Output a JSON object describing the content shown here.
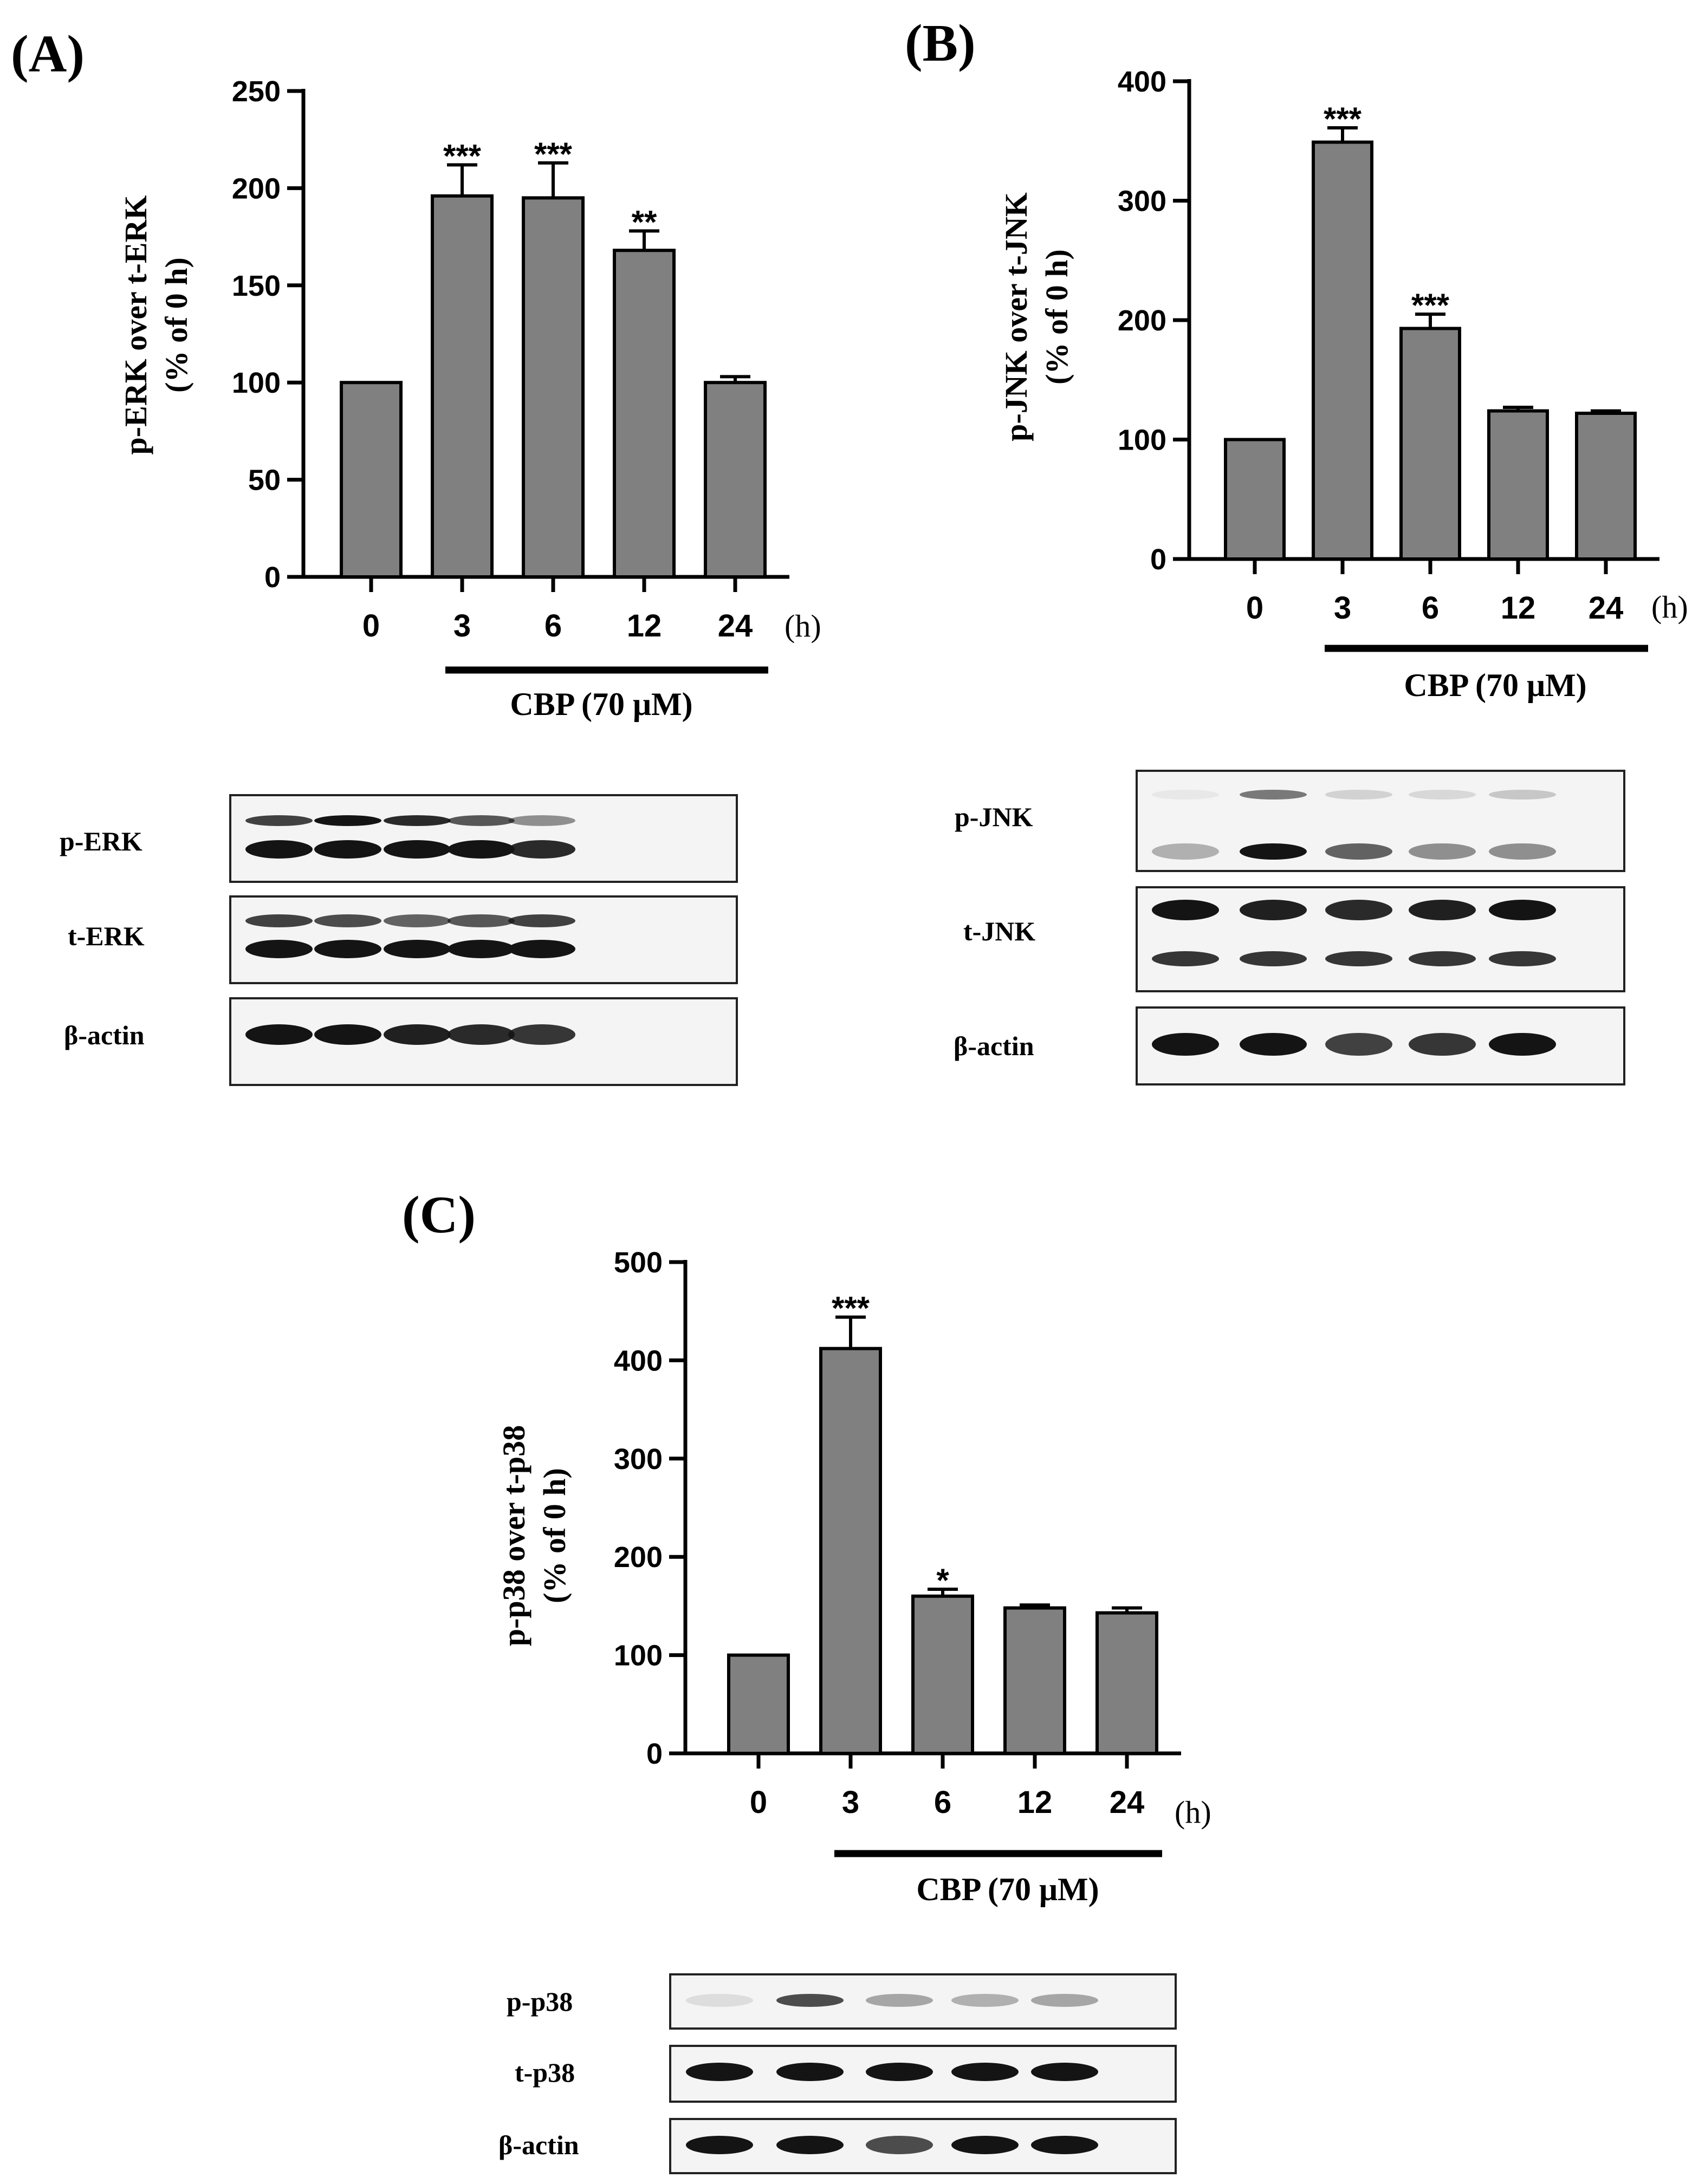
{
  "panels": {
    "A": {
      "label": "(A)",
      "treatment": "CBP (70 μM)",
      "unit": "(h)",
      "ylabel1": "p-ERK over t-ERK",
      "ylabel2": "(% of 0 h)",
      "blot_labels": [
        "p-ERK",
        "t-ERK",
        "β-actin"
      ]
    },
    "B": {
      "label": "(B)",
      "treatment": "CBP (70 μM)",
      "unit": "(h)",
      "ylabel1": "p-JNK over t-JNK",
      "ylabel2": "(% of 0 h)",
      "blot_labels": [
        "p-JNK",
        "t-JNK",
        "β-actin"
      ]
    },
    "C": {
      "label": "(C)",
      "treatment": "CBP (70 μM)",
      "unit": "(h)",
      "ylabel1": "p-p38 over t-p38",
      "ylabel2": "(% of 0 h)",
      "blot_labels": [
        "p-p38",
        "t-p38",
        "β-actin"
      ]
    }
  },
  "chart_data": [
    {
      "type": "bar",
      "panel": "A",
      "title": "",
      "categories": [
        "0",
        "3",
        "6",
        "12",
        "24"
      ],
      "values": [
        100,
        196,
        195,
        168,
        100
      ],
      "errors": [
        0,
        16,
        18,
        10,
        3
      ],
      "significance": [
        "",
        "***",
        "***",
        "**",
        ""
      ],
      "xlabel": "CBP (70 μM)",
      "ylabel": "p-ERK over t-ERK (% of 0 h)",
      "ylim": [
        0,
        250
      ],
      "yticks": [
        0,
        50,
        100,
        150,
        200,
        250
      ]
    },
    {
      "type": "bar",
      "panel": "B",
      "title": "",
      "categories": [
        "0",
        "3",
        "6",
        "12",
        "24"
      ],
      "values": [
        100,
        349,
        193,
        124,
        122
      ],
      "errors": [
        0,
        12,
        12,
        3,
        2
      ],
      "significance": [
        "",
        "***",
        "***",
        "",
        ""
      ],
      "xlabel": "CBP (70 μM)",
      "ylabel": "p-JNK over t-JNK (% of 0 h)",
      "ylim": [
        0,
        400
      ],
      "yticks": [
        0,
        100,
        200,
        300,
        400
      ]
    },
    {
      "type": "bar",
      "panel": "C",
      "title": "",
      "categories": [
        "0",
        "3",
        "6",
        "12",
        "24"
      ],
      "values": [
        100,
        412,
        160,
        148,
        143
      ],
      "errors": [
        0,
        32,
        7,
        3,
        5
      ],
      "significance": [
        "",
        "***",
        "*",
        "",
        ""
      ],
      "xlabel": "CBP (70 μM)",
      "ylabel": "p-p38 over t-p38 (% of 0 h)",
      "ylim": [
        0,
        500
      ],
      "yticks": [
        0,
        100,
        200,
        300,
        400,
        500
      ]
    }
  ],
  "colors": {
    "bar": "#808080",
    "axis": "#000000",
    "blot_bg": "#f4f4f4",
    "band": "#141414"
  }
}
